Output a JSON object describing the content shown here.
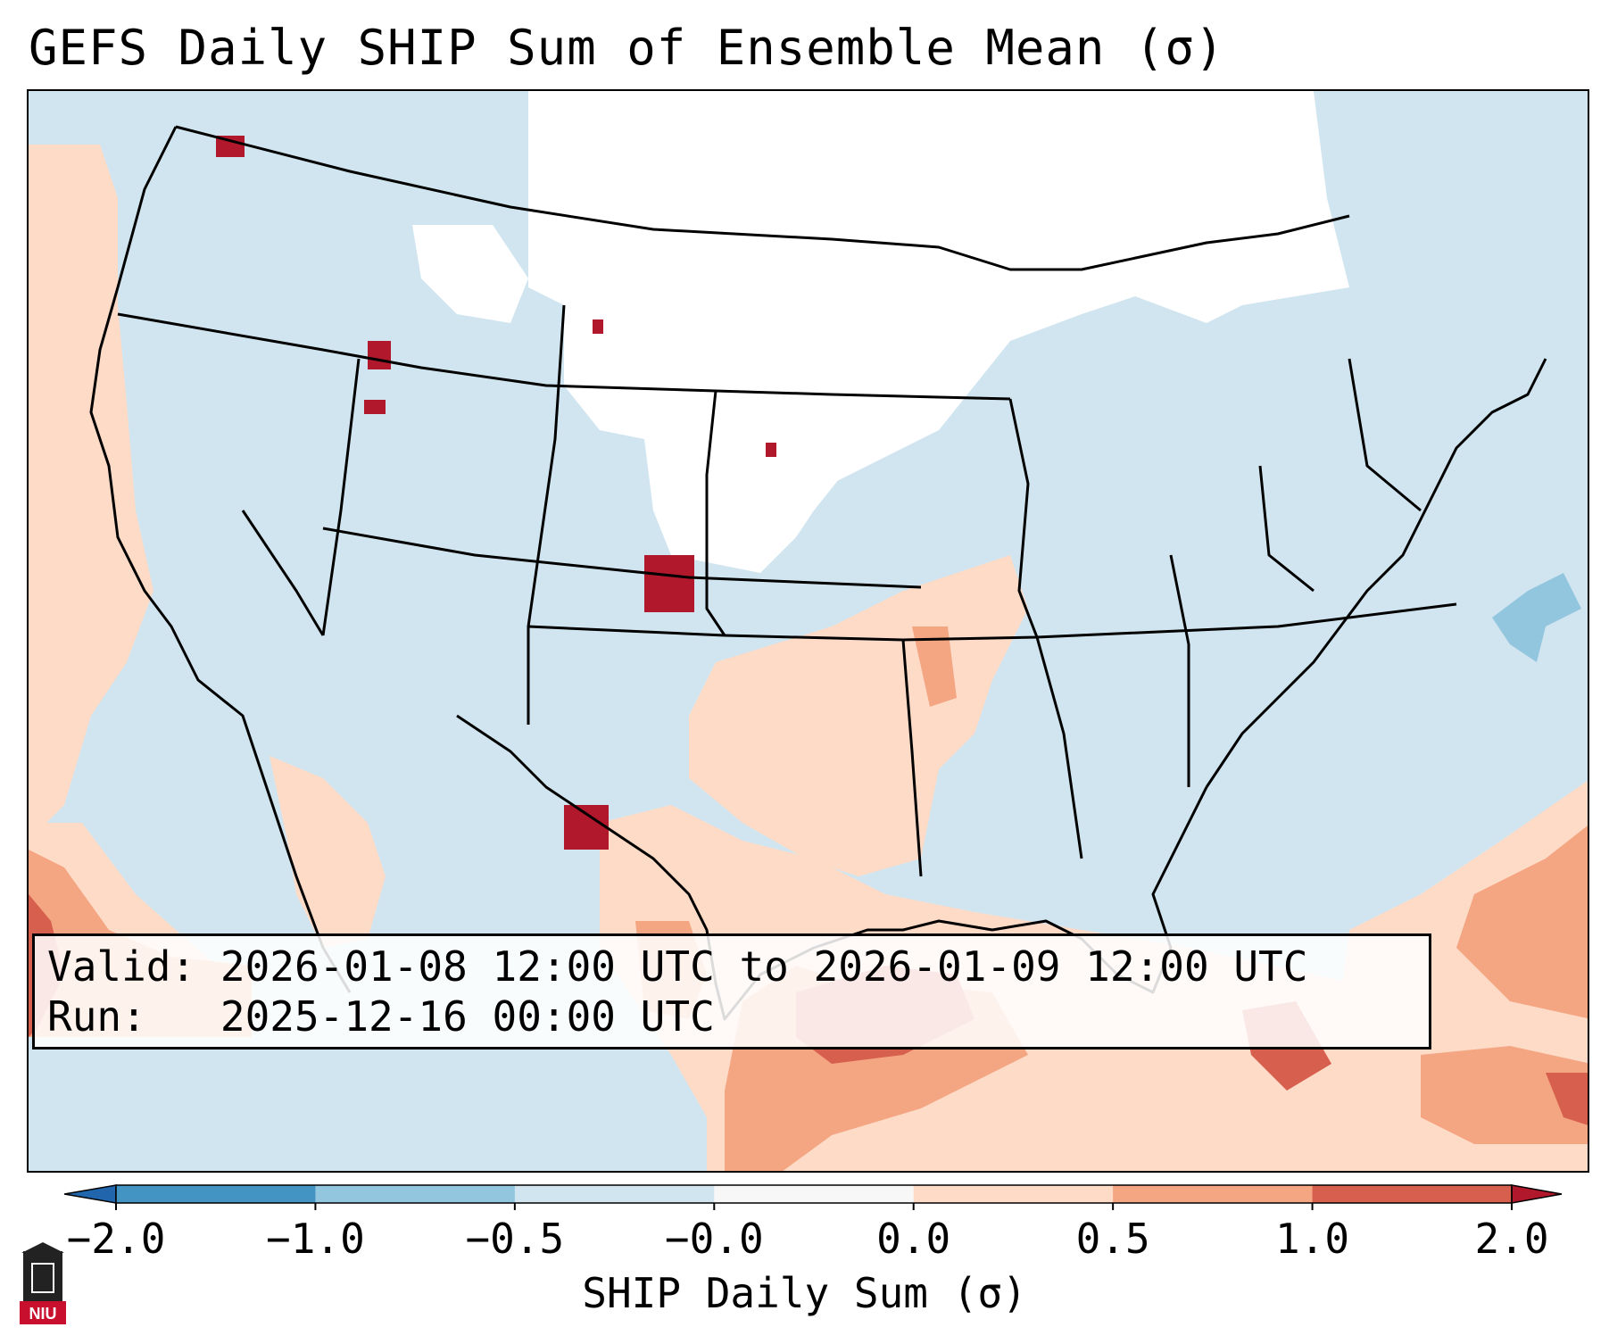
{
  "title": "GEFS Daily SHIP Sum of Ensemble Mean (σ)",
  "info": {
    "valid_label": "Valid:",
    "valid_value": "2026-01-08 12:00 UTC to 2026-01-09 12:00 UTC",
    "run_label": "Run:",
    "run_value": "2025-12-16 00:00 UTC"
  },
  "colorbar": {
    "title": "SHIP Daily Sum (σ)",
    "ticks": [
      "−2.0",
      "−1.0",
      "−0.5",
      "−0.0",
      "0.0",
      "0.5",
      "1.0",
      "2.0"
    ],
    "bins": [
      {
        "range": "< -2.0",
        "color": "#2166ac"
      },
      {
        "range": "-2.0 to -1.0",
        "color": "#4393c3"
      },
      {
        "range": "-1.0 to -0.5",
        "color": "#92c5de"
      },
      {
        "range": "-0.5 to -0.0",
        "color": "#d1e5f0"
      },
      {
        "range": "-0.0 to 0.0",
        "color": "#f7f7f7"
      },
      {
        "range": "0.0 to 0.5",
        "color": "#fddbc7"
      },
      {
        "range": "0.5 to 1.0",
        "color": "#f4a582"
      },
      {
        "range": "1.0 to 2.0",
        "color": "#d6604d"
      },
      {
        "range": "> 2.0",
        "color": "#b2182b"
      }
    ]
  },
  "colors": {
    "neg_strong": "#4393c3",
    "neg_mid": "#92c5de",
    "neg_weak": "#d1e5f0",
    "neutral": "#ffffff",
    "pos_weak": "#fddbc7",
    "pos_mid": "#f4a582",
    "pos_high": "#d6604d",
    "pos_extreme": "#b2182b"
  },
  "logo": {
    "text": "NIU",
    "icon": "niu-logo-icon"
  }
}
